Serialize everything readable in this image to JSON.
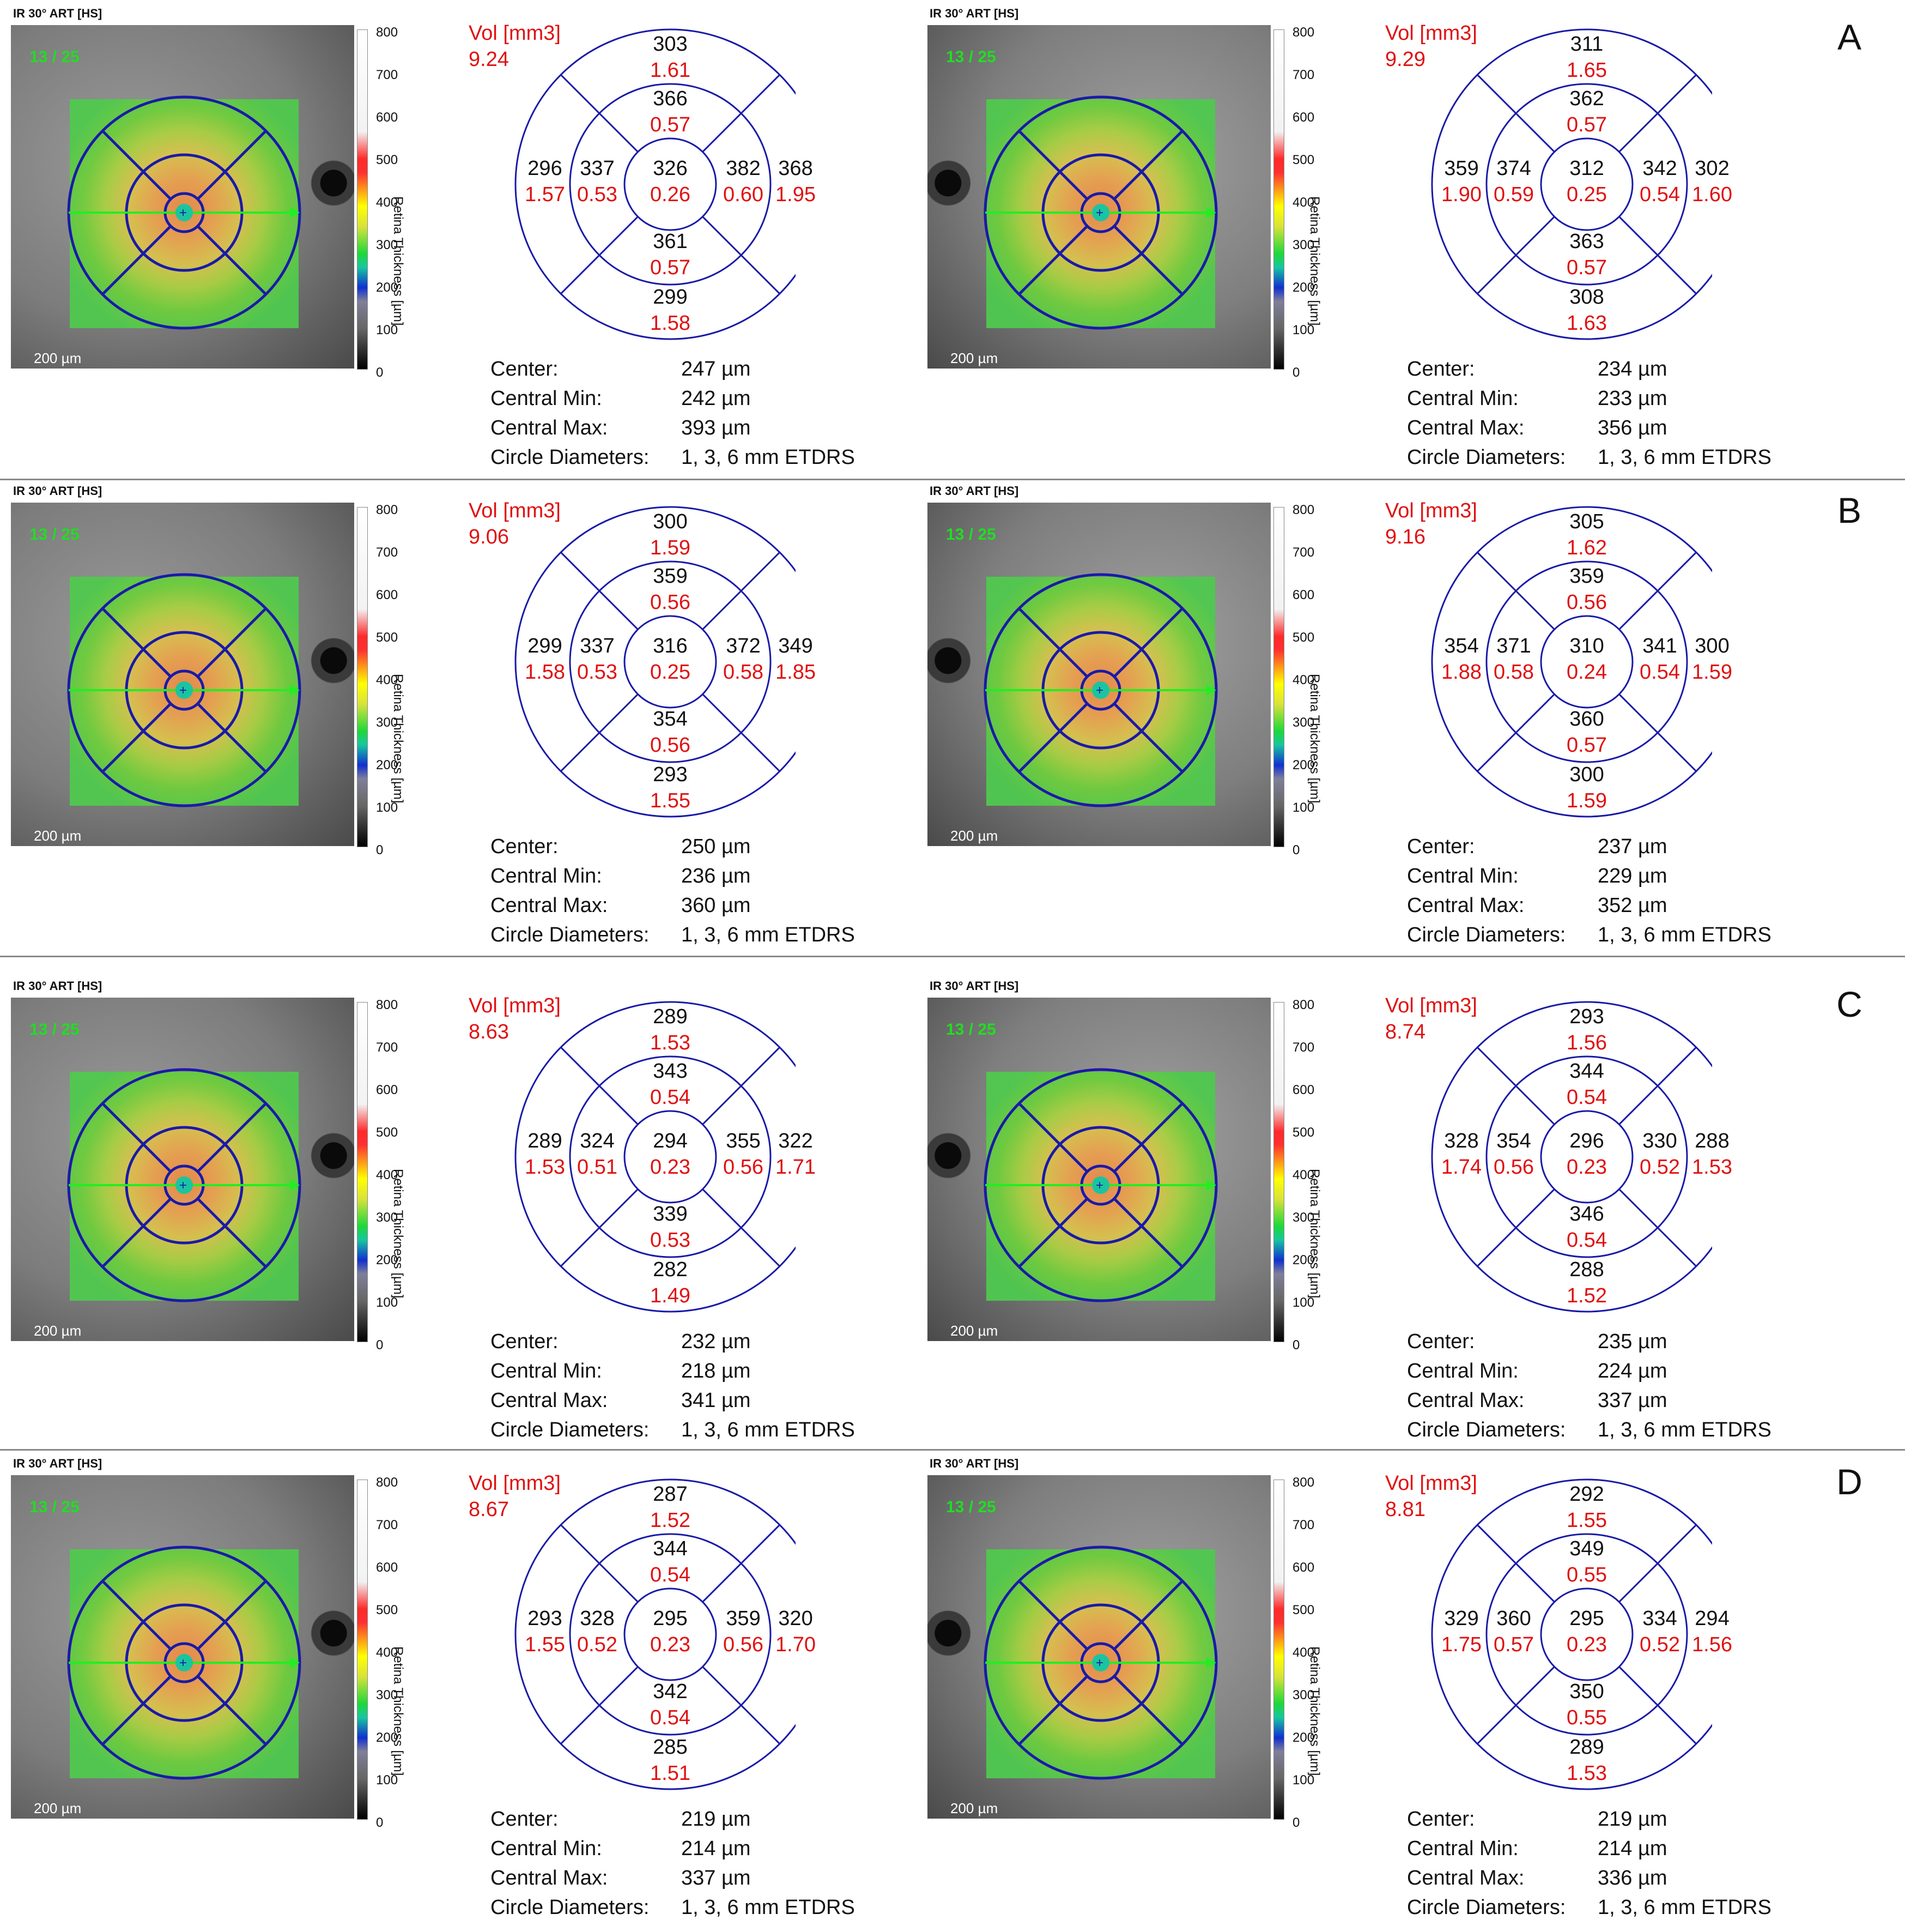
{
  "scan_title": "IR 30° ART [HS]",
  "scan_count": "13 / 25",
  "scale_label": "200 µm",
  "colorbar_ticks": [
    "800",
    "700",
    "600",
    "500",
    "400",
    "300",
    "200",
    "100",
    "0"
  ],
  "colorbar_label": "Retina Thickness [µm]",
  "vol_label": "Vol [mm3]",
  "info_labels": [
    "Center:",
    "Central Min:",
    "Central Max:",
    "Circle Diameters:"
  ],
  "circle_diameters": "1, 3, 6 mm ETDRS",
  "colors": {
    "thickness": "#111111",
    "volume": "#e01010",
    "grid": "#1a1aa8",
    "label_green": "#22dd22"
  },
  "rows": [
    {
      "label": "A",
      "panels": [
        {
          "eye": "right",
          "vol_total": "9.24",
          "sectors": {
            "outer_top": [
              "303",
              "1.61"
            ],
            "inner_top": [
              "366",
              "0.57"
            ],
            "outer_left": [
              "296",
              "1.57"
            ],
            "inner_left": [
              "337",
              "0.53"
            ],
            "center": [
              "326",
              "0.26"
            ],
            "inner_right": [
              "382",
              "0.60"
            ],
            "outer_right": [
              "368",
              "1.95"
            ],
            "inner_bottom": [
              "361",
              "0.57"
            ],
            "outer_bottom": [
              "299",
              "1.58"
            ]
          },
          "center": "247 µm",
          "central_min": "242 µm",
          "central_max": "393 µm"
        },
        {
          "eye": "left",
          "vol_total": "9.29",
          "sectors": {
            "outer_top": [
              "311",
              "1.65"
            ],
            "inner_top": [
              "362",
              "0.57"
            ],
            "outer_left": [
              "359",
              "1.90"
            ],
            "inner_left": [
              "374",
              "0.59"
            ],
            "center": [
              "312",
              "0.25"
            ],
            "inner_right": [
              "342",
              "0.54"
            ],
            "outer_right": [
              "302",
              "1.60"
            ],
            "inner_bottom": [
              "363",
              "0.57"
            ],
            "outer_bottom": [
              "308",
              "1.63"
            ]
          },
          "center": "234 µm",
          "central_min": "233 µm",
          "central_max": "356 µm"
        }
      ]
    },
    {
      "label": "B",
      "panels": [
        {
          "eye": "right",
          "vol_total": "9.06",
          "sectors": {
            "outer_top": [
              "300",
              "1.59"
            ],
            "inner_top": [
              "359",
              "0.56"
            ],
            "outer_left": [
              "299",
              "1.58"
            ],
            "inner_left": [
              "337",
              "0.53"
            ],
            "center": [
              "316",
              "0.25"
            ],
            "inner_right": [
              "372",
              "0.58"
            ],
            "outer_right": [
              "349",
              "1.85"
            ],
            "inner_bottom": [
              "354",
              "0.56"
            ],
            "outer_bottom": [
              "293",
              "1.55"
            ]
          },
          "center": "250 µm",
          "central_min": "236 µm",
          "central_max": "360 µm"
        },
        {
          "eye": "left",
          "vol_total": "9.16",
          "sectors": {
            "outer_top": [
              "305",
              "1.62"
            ],
            "inner_top": [
              "359",
              "0.56"
            ],
            "outer_left": [
              "354",
              "1.88"
            ],
            "inner_left": [
              "371",
              "0.58"
            ],
            "center": [
              "310",
              "0.24"
            ],
            "inner_right": [
              "341",
              "0.54"
            ],
            "outer_right": [
              "300",
              "1.59"
            ],
            "inner_bottom": [
              "360",
              "0.57"
            ],
            "outer_bottom": [
              "300",
              "1.59"
            ]
          },
          "center": "237 µm",
          "central_min": "229 µm",
          "central_max": "352 µm"
        }
      ]
    },
    {
      "label": "C",
      "panels": [
        {
          "eye": "right",
          "vol_total": "8.63",
          "sectors": {
            "outer_top": [
              "289",
              "1.53"
            ],
            "inner_top": [
              "343",
              "0.54"
            ],
            "outer_left": [
              "289",
              "1.53"
            ],
            "inner_left": [
              "324",
              "0.51"
            ],
            "center": [
              "294",
              "0.23"
            ],
            "inner_right": [
              "355",
              "0.56"
            ],
            "outer_right": [
              "322",
              "1.71"
            ],
            "inner_bottom": [
              "339",
              "0.53"
            ],
            "outer_bottom": [
              "282",
              "1.49"
            ]
          },
          "center": "232 µm",
          "central_min": "218 µm",
          "central_max": "341 µm"
        },
        {
          "eye": "left",
          "vol_total": "8.74",
          "sectors": {
            "outer_top": [
              "293",
              "1.56"
            ],
            "inner_top": [
              "344",
              "0.54"
            ],
            "outer_left": [
              "328",
              "1.74"
            ],
            "inner_left": [
              "354",
              "0.56"
            ],
            "center": [
              "296",
              "0.23"
            ],
            "inner_right": [
              "330",
              "0.52"
            ],
            "outer_right": [
              "288",
              "1.53"
            ],
            "inner_bottom": [
              "346",
              "0.54"
            ],
            "outer_bottom": [
              "288",
              "1.52"
            ]
          },
          "center": "235 µm",
          "central_min": "224 µm",
          "central_max": "337 µm"
        }
      ]
    },
    {
      "label": "D",
      "panels": [
        {
          "eye": "right",
          "vol_total": "8.67",
          "sectors": {
            "outer_top": [
              "287",
              "1.52"
            ],
            "inner_top": [
              "344",
              "0.54"
            ],
            "outer_left": [
              "293",
              "1.55"
            ],
            "inner_left": [
              "328",
              "0.52"
            ],
            "center": [
              "295",
              "0.23"
            ],
            "inner_right": [
              "359",
              "0.56"
            ],
            "outer_right": [
              "320",
              "1.70"
            ],
            "inner_bottom": [
              "342",
              "0.54"
            ],
            "outer_bottom": [
              "285",
              "1.51"
            ]
          },
          "center": "219 µm",
          "central_min": "214 µm",
          "central_max": "337 µm"
        },
        {
          "eye": "left",
          "vol_total": "8.81",
          "sectors": {
            "outer_top": [
              "292",
              "1.55"
            ],
            "inner_top": [
              "349",
              "0.55"
            ],
            "outer_left": [
              "329",
              "1.75"
            ],
            "inner_left": [
              "360",
              "0.57"
            ],
            "center": [
              "295",
              "0.23"
            ],
            "inner_right": [
              "334",
              "0.52"
            ],
            "outer_right": [
              "294",
              "1.56"
            ],
            "inner_bottom": [
              "350",
              "0.55"
            ],
            "outer_bottom": [
              "289",
              "1.53"
            ]
          },
          "center": "219 µm",
          "central_min": "214 µm",
          "central_max": "336 µm"
        }
      ]
    }
  ]
}
